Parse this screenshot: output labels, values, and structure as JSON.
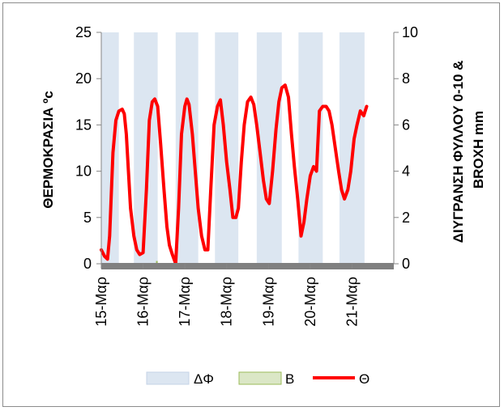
{
  "chart_data": {
    "type": "line",
    "categories": [
      "15-Μαρ",
      "16-Μαρ",
      "17-Μαρ",
      "18-Μαρ",
      "19-Μαρ",
      "20-Μαρ",
      "21-Μαρ"
    ],
    "ylabel": "ΘΕΡΜΟΚΡΑΣΙΑ ºc",
    "ylabel2": [
      "ΔΙΥΓΡΑΝΣΗ ΦΥΛΛΟΥ 0-10 &",
      "BROXH mm"
    ],
    "ylim": [
      0,
      25
    ],
    "yticks": [
      "0",
      "5",
      "10",
      "15",
      "20",
      "25"
    ],
    "y2lim": [
      0,
      10
    ],
    "y2ticks": [
      "0",
      "2",
      "4",
      "6",
      "8",
      "10"
    ],
    "grid": false,
    "legend_position": "bottom",
    "legend": [
      "ΔΦ",
      "Β",
      "Θ"
    ],
    "series": [
      {
        "name": "ΔΦ",
        "kind": "area",
        "axis": "secondary",
        "color": "#dce6f1",
        "periods": [
          [
            15.0,
            15.42,
            10
          ],
          [
            15.78,
            16.35,
            10
          ],
          [
            16.78,
            17.32,
            10
          ],
          [
            17.72,
            18.28,
            10
          ],
          [
            18.72,
            19.32,
            10
          ],
          [
            19.72,
            20.3,
            10
          ],
          [
            20.7,
            21.3,
            10
          ]
        ]
      },
      {
        "name": "Β",
        "kind": "area",
        "axis": "secondary",
        "color": "#9bbb59",
        "points": [
          [
            16.33,
            0.12
          ]
        ]
      },
      {
        "name": "Θ",
        "kind": "line",
        "axis": "primary",
        "color": "#ff0000",
        "x": [
          15.0,
          15.08,
          15.15,
          15.2,
          15.28,
          15.35,
          15.42,
          15.5,
          15.55,
          15.6,
          15.65,
          15.7,
          15.78,
          15.85,
          15.92,
          16.0,
          16.08,
          16.15,
          16.22,
          16.28,
          16.35,
          16.42,
          16.5,
          16.57,
          16.63,
          16.7,
          16.78,
          16.85,
          16.92,
          17.0,
          17.05,
          17.1,
          17.18,
          17.25,
          17.32,
          17.4,
          17.48,
          17.55,
          17.62,
          17.7,
          17.78,
          17.85,
          17.92,
          18.0,
          18.08,
          18.15,
          18.22,
          18.28,
          18.35,
          18.42,
          18.5,
          18.58,
          18.65,
          18.72,
          18.8,
          18.88,
          18.95,
          19.02,
          19.1,
          19.18,
          19.25,
          19.32,
          19.4,
          19.48,
          19.55,
          19.62,
          19.7,
          19.78,
          19.85,
          19.92,
          20.0,
          20.08,
          20.15,
          20.22,
          20.3,
          20.38,
          20.45,
          20.52,
          20.6,
          20.68,
          20.75,
          20.82,
          20.9,
          20.97,
          21.05,
          21.12,
          21.2,
          21.28,
          21.35
        ],
        "y": [
          1.5,
          0.8,
          0.5,
          3.0,
          12.0,
          15.5,
          16.5,
          16.7,
          16.2,
          14.0,
          10.0,
          6.0,
          3.0,
          1.5,
          1.0,
          1.2,
          8.0,
          15.5,
          17.5,
          17.8,
          17.0,
          13.0,
          8.0,
          4.0,
          2.0,
          1.0,
          0.0,
          6.0,
          14.0,
          17.0,
          17.8,
          17.2,
          14.0,
          10.0,
          6.0,
          3.0,
          1.5,
          1.5,
          8.0,
          15.0,
          17.0,
          17.7,
          15.0,
          11.0,
          8.0,
          5.0,
          5.0,
          6.0,
          11.0,
          15.0,
          17.5,
          18.0,
          17.2,
          15.0,
          12.0,
          9.0,
          7.0,
          6.5,
          10.0,
          14.5,
          17.5,
          19.0,
          19.3,
          18.0,
          14.0,
          10.5,
          7.0,
          3.0,
          4.5,
          7.0,
          9.5,
          10.5,
          10.0,
          16.5,
          17.0,
          17.0,
          16.5,
          15.0,
          12.5,
          10.0,
          8.0,
          7.0,
          8.0,
          10.0,
          13.5,
          15.0,
          16.5,
          16.0,
          17.0
        ]
      }
    ]
  }
}
